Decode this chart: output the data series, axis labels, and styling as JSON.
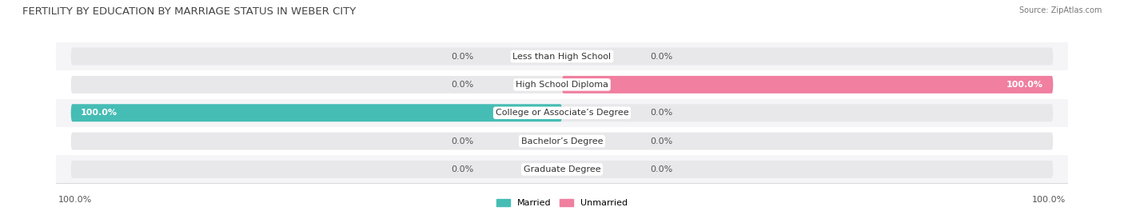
{
  "title": "FERTILITY BY EDUCATION BY MARRIAGE STATUS IN WEBER CITY",
  "source": "Source: ZipAtlas.com",
  "categories": [
    "Less than High School",
    "High School Diploma",
    "College or Associate’s Degree",
    "Bachelor’s Degree",
    "Graduate Degree"
  ],
  "married_values": [
    0.0,
    0.0,
    100.0,
    0.0,
    0.0
  ],
  "unmarried_values": [
    0.0,
    100.0,
    0.0,
    0.0,
    0.0
  ],
  "married_color": "#45BDB5",
  "unmarried_color": "#F07FA0",
  "bar_bg_color": "#E8E8EA",
  "bg_color": "#FFFFFF",
  "row_bg_even": "#FFFFFF",
  "row_bg_odd": "#F5F5F7",
  "title_fontsize": 9.5,
  "label_fontsize": 8,
  "source_fontsize": 7,
  "legend_fontsize": 8,
  "bar_height": 0.62,
  "xlim": 100,
  "axis_label_left": "100.0%",
  "axis_label_right": "100.0%"
}
